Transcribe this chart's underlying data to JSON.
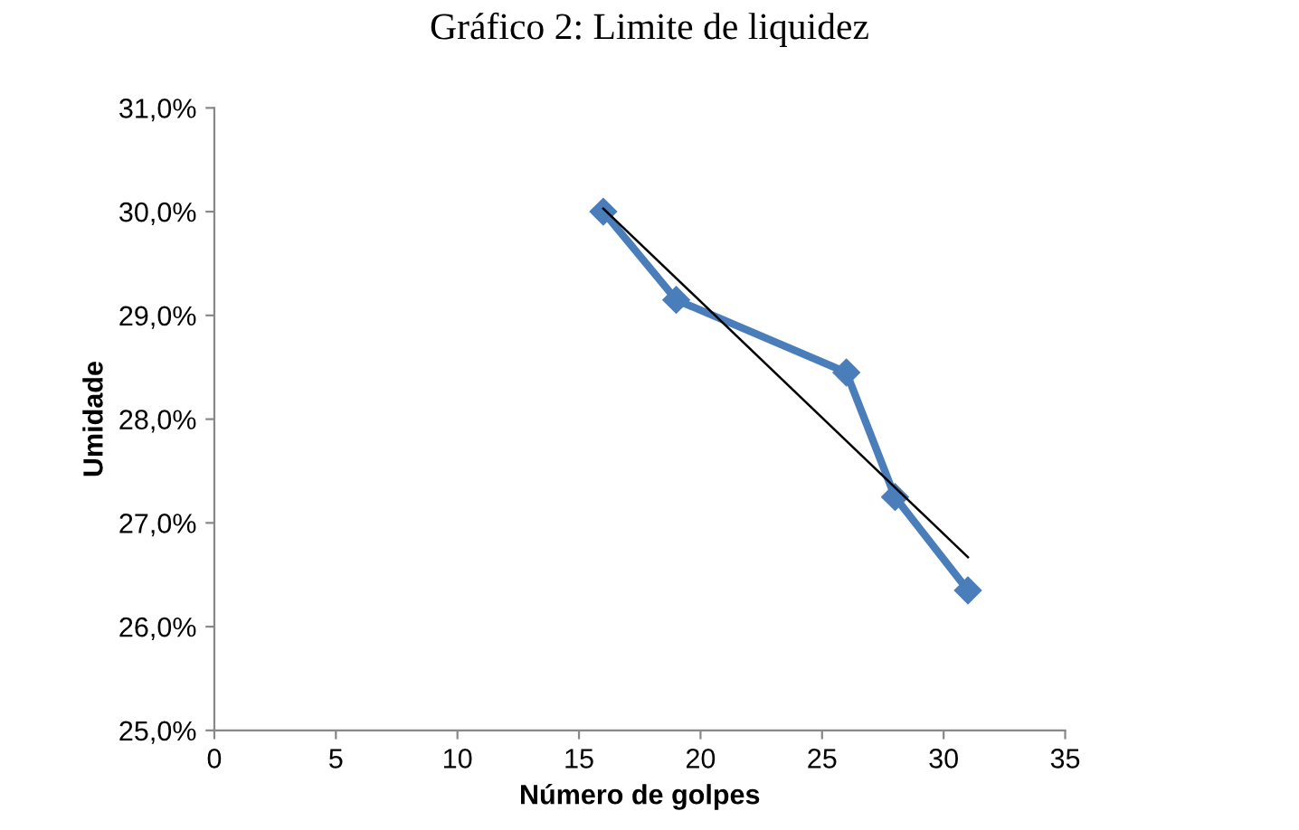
{
  "chart_data": {
    "type": "line",
    "title": "Gráfico 2: Limite de liquidez",
    "xlabel": "Número de golpes",
    "ylabel": "Umidade",
    "xlim": [
      0,
      35
    ],
    "xticks": [
      0,
      5,
      10,
      15,
      20,
      25,
      30,
      35
    ],
    "ylim": [
      25,
      31
    ],
    "yticks": [
      {
        "value": 25,
        "label": "25,0%"
      },
      {
        "value": 26,
        "label": "26,0%"
      },
      {
        "value": 27,
        "label": "27,0%"
      },
      {
        "value": 28,
        "label": "28,0%"
      },
      {
        "value": 29,
        "label": "29,0%"
      },
      {
        "value": 30,
        "label": "30,0%"
      },
      {
        "value": 31,
        "label": "31,0%"
      }
    ],
    "grid": false,
    "legend": false,
    "series": [
      {
        "color": "#4a7ebb",
        "x": [
          16,
          19,
          26,
          28,
          31
        ],
        "values": [
          30.0,
          29.15,
          28.45,
          27.25,
          26.35
        ],
        "marker": "diamond"
      },
      {
        "color": "#000000",
        "x": [
          16,
          31
        ],
        "values": [
          30.03,
          26.67
        ],
        "marker": "none"
      }
    ]
  }
}
